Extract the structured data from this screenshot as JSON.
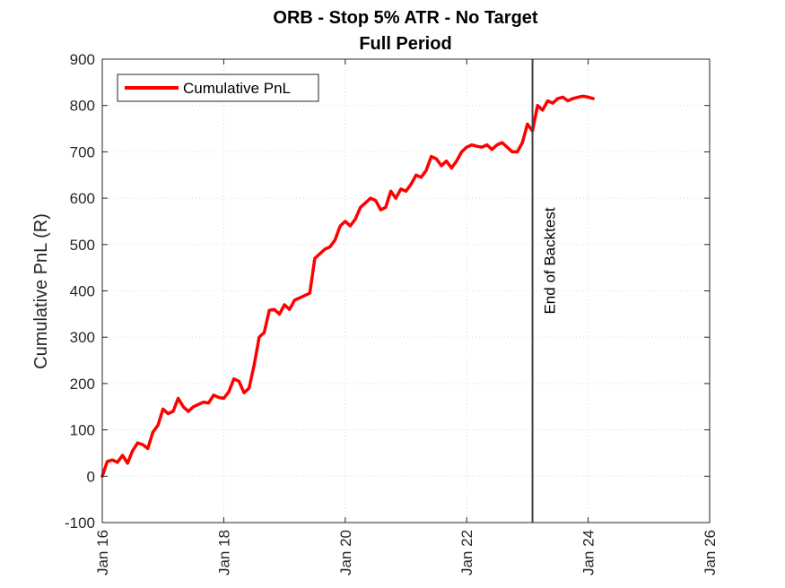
{
  "chart_data": {
    "type": "line",
    "title": "ORB - Stop 5% ATR - No Target",
    "subtitle": "Full Period",
    "xlabel": "",
    "ylabel": "Cumulative PnL (R)",
    "xlim": [
      "2016-01",
      "2026-01"
    ],
    "ylim": [
      -100,
      900
    ],
    "xticks": [
      "Jan 16",
      "Jan 18",
      "Jan 20",
      "Jan 22",
      "Jan 24",
      "Jan 26"
    ],
    "yticks": [
      "-100",
      "0",
      "100",
      "200",
      "300",
      "400",
      "500",
      "600",
      "700",
      "800",
      "900"
    ],
    "grid": true,
    "legend": {
      "position": "top-left",
      "entries": [
        "Cumulative PnL"
      ]
    },
    "series": [
      {
        "name": "Cumulative PnL",
        "color": "#ff0000",
        "x": [
          "2016-01",
          "2016-02",
          "2016-03",
          "2016-04",
          "2016-05",
          "2016-06",
          "2016-07",
          "2016-08",
          "2016-09",
          "2016-10",
          "2016-11",
          "2016-12",
          "2017-01",
          "2017-02",
          "2017-03",
          "2017-04",
          "2017-05",
          "2017-06",
          "2017-07",
          "2017-08",
          "2017-09",
          "2017-10",
          "2017-11",
          "2017-12",
          "2018-01",
          "2018-02",
          "2018-03",
          "2018-04",
          "2018-05",
          "2018-06",
          "2018-07",
          "2018-08",
          "2018-09",
          "2018-10",
          "2018-11",
          "2018-12",
          "2019-01",
          "2019-02",
          "2019-03",
          "2019-04",
          "2019-05",
          "2019-06",
          "2019-07",
          "2019-08",
          "2019-09",
          "2019-10",
          "2019-11",
          "2019-12",
          "2020-01",
          "2020-02",
          "2020-03",
          "2020-04",
          "2020-05",
          "2020-06",
          "2020-07",
          "2020-08",
          "2020-09",
          "2020-10",
          "2020-11",
          "2020-12",
          "2021-01",
          "2021-02",
          "2021-03",
          "2021-04",
          "2021-05",
          "2021-06",
          "2021-07",
          "2021-08",
          "2021-09",
          "2021-10",
          "2021-11",
          "2021-12",
          "2022-01",
          "2022-02",
          "2022-03",
          "2022-04",
          "2022-05",
          "2022-06",
          "2022-07",
          "2022-08",
          "2022-09",
          "2022-10",
          "2022-11",
          "2022-12",
          "2023-01",
          "2023-02",
          "2023-03",
          "2023-04",
          "2023-05",
          "2023-06",
          "2023-07",
          "2023-08",
          "2023-09",
          "2023-10",
          "2023-11",
          "2023-12",
          "2024-01",
          "2024-02"
        ],
        "values": [
          0,
          32,
          35,
          30,
          45,
          28,
          55,
          72,
          68,
          60,
          95,
          110,
          145,
          135,
          140,
          168,
          150,
          140,
          150,
          155,
          160,
          158,
          175,
          170,
          168,
          182,
          210,
          205,
          180,
          190,
          240,
          300,
          310,
          358,
          360,
          350,
          370,
          360,
          380,
          385,
          390,
          395,
          470,
          480,
          490,
          495,
          510,
          540,
          550,
          540,
          555,
          580,
          590,
          600,
          595,
          575,
          580,
          615,
          600,
          620,
          615,
          630,
          650,
          645,
          660,
          690,
          685,
          670,
          680,
          665,
          680,
          700,
          710,
          715,
          712,
          710,
          715,
          705,
          715,
          720,
          710,
          700,
          700,
          720,
          760,
          745,
          800,
          790,
          810,
          805,
          815,
          818,
          810,
          815,
          818,
          820,
          818,
          815
        ]
      }
    ],
    "annotations": [
      {
        "type": "vline",
        "x": "2023-02",
        "label": "End of Backtest",
        "color": "#404040"
      }
    ]
  }
}
